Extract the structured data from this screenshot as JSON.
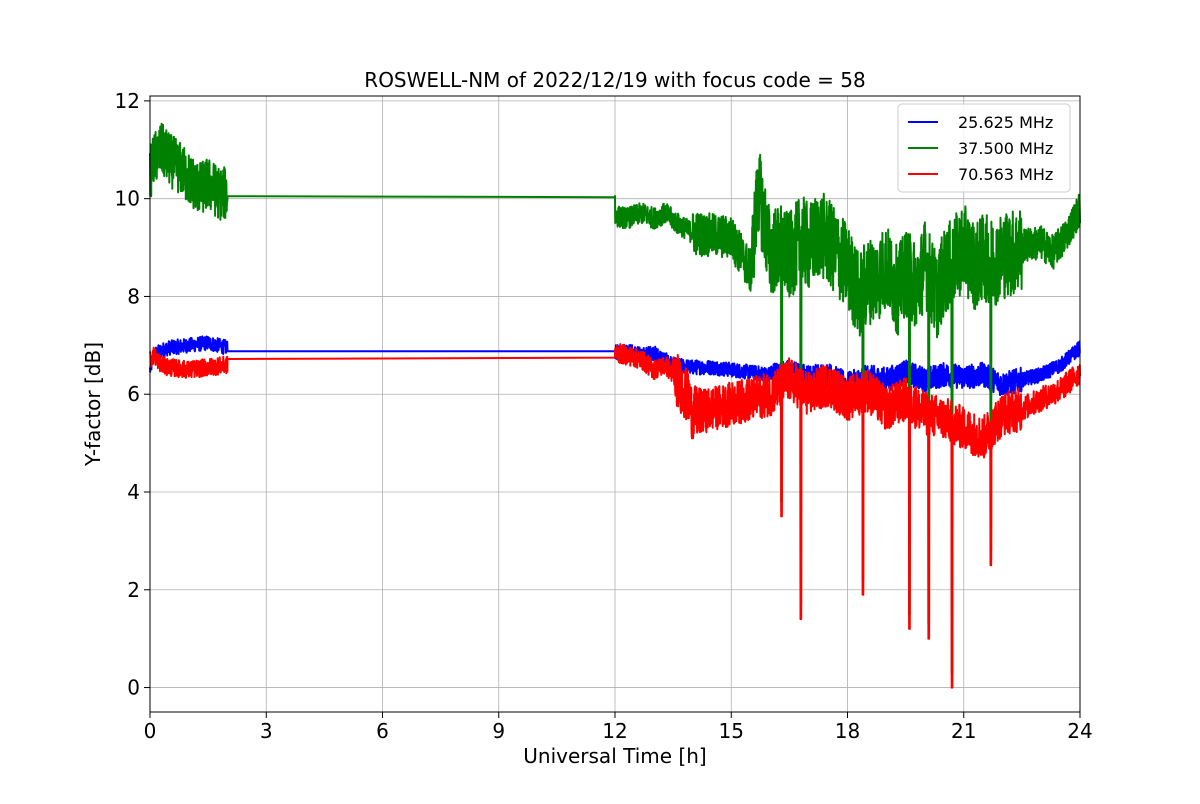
{
  "chart_data": {
    "type": "line",
    "title": "ROSWELL-NM of 2022/12/19 with focus code = 58",
    "xlabel": "Universal Time [h]",
    "ylabel": "Y-factor [dB]",
    "xlim": [
      0,
      24
    ],
    "ylim": [
      -0.5,
      12.1
    ],
    "x_ticks": [
      0,
      3,
      6,
      9,
      12,
      15,
      18,
      21,
      24
    ],
    "y_ticks": [
      0,
      2,
      4,
      6,
      8,
      10,
      12
    ],
    "grid": true,
    "legend_position": "top-right",
    "series": [
      {
        "name": "25.625 MHz",
        "color": "#0000ff",
        "x": [
          0,
          0.1,
          0.3,
          0.5,
          1.0,
          1.5,
          2.0,
          2.0,
          12.0,
          12.0,
          12.3,
          12.7,
          13.0,
          13.5,
          14.0,
          14.5,
          15.0,
          15.5,
          16.0,
          16.5,
          17.0,
          17.5,
          18.0,
          18.5,
          19.0,
          19.5,
          20.0,
          20.5,
          21.0,
          21.5,
          22.0,
          22.5,
          23.0,
          23.5,
          24.0
        ],
        "y": [
          6.5,
          6.8,
          6.9,
          6.95,
          7.0,
          7.05,
          6.95,
          6.88,
          6.88,
          6.85,
          6.9,
          6.8,
          6.85,
          6.6,
          6.55,
          6.55,
          6.5,
          6.45,
          6.4,
          6.45,
          6.35,
          6.4,
          6.2,
          6.35,
          6.3,
          6.45,
          6.3,
          6.4,
          6.35,
          6.4,
          6.2,
          6.3,
          6.4,
          6.6,
          6.95
        ]
      },
      {
        "name": "37.500 MHz",
        "color": "#008000",
        "x": [
          0,
          0.1,
          0.3,
          0.5,
          0.8,
          1.0,
          1.3,
          1.5,
          1.8,
          2.0,
          2.0,
          12.0,
          12.0,
          12.3,
          12.7,
          13.0,
          13.3,
          13.6,
          14.0,
          14.5,
          15.0,
          15.3,
          15.5,
          15.7,
          16.0,
          16.3,
          16.5,
          16.8,
          17.0,
          17.3,
          17.5,
          18.0,
          18.3,
          18.5,
          18.8,
          19.0,
          19.3,
          19.5,
          19.8,
          20.0,
          20.3,
          20.5,
          20.8,
          21.0,
          21.3,
          21.5,
          21.8,
          22.0,
          22.3,
          22.6,
          23.0,
          23.3,
          23.6,
          24.0
        ],
        "y": [
          10.5,
          10.8,
          11.0,
          10.8,
          10.6,
          10.4,
          10.2,
          10.3,
          10.1,
          10.1,
          10.05,
          10.03,
          9.65,
          9.6,
          9.7,
          9.6,
          9.7,
          9.5,
          9.3,
          9.25,
          9.2,
          8.8,
          8.5,
          10.2,
          8.9,
          9.0,
          8.8,
          9.2,
          9.0,
          9.3,
          9.1,
          8.6,
          8.0,
          8.3,
          8.4,
          8.6,
          8.1,
          8.5,
          8.2,
          8.7,
          8.0,
          8.5,
          8.8,
          9.0,
          8.6,
          8.8,
          8.7,
          8.85,
          8.9,
          9.05,
          9.1,
          8.9,
          9.2,
          9.8
        ]
      },
      {
        "name": "70.563 MHz",
        "color": "#ff0000",
        "x": [
          0,
          0.1,
          0.3,
          0.5,
          1.0,
          1.5,
          2.0,
          2.0,
          12.0,
          12.0,
          12.3,
          12.7,
          13.0,
          13.3,
          13.6,
          13.9,
          14.0,
          14.5,
          15.0,
          15.5,
          16.0,
          16.5,
          17.0,
          17.5,
          18.0,
          18.5,
          19.0,
          19.5,
          20.0,
          20.5,
          21.0,
          21.5,
          21.8,
          22.0,
          22.5,
          23.0,
          23.5,
          24.0
        ],
        "y": [
          6.7,
          6.8,
          6.6,
          6.55,
          6.5,
          6.55,
          6.6,
          6.72,
          6.75,
          6.85,
          6.8,
          6.7,
          6.5,
          6.6,
          6.3,
          5.9,
          5.6,
          5.7,
          5.8,
          5.9,
          6.0,
          6.3,
          6.0,
          6.2,
          5.9,
          6.1,
          5.7,
          5.9,
          5.6,
          5.5,
          5.3,
          5.1,
          5.4,
          5.6,
          5.7,
          5.9,
          6.1,
          6.45
        ]
      }
    ],
    "dips": [
      {
        "x": 16.3,
        "y": 3.5
      },
      {
        "x": 16.8,
        "y": 1.4
      },
      {
        "x": 18.4,
        "y": 1.9
      },
      {
        "x": 19.6,
        "y": 1.2
      },
      {
        "x": 20.1,
        "y": 1.0
      },
      {
        "x": 20.7,
        "y": 0.0
      },
      {
        "x": 21.7,
        "y": 2.5
      }
    ]
  }
}
